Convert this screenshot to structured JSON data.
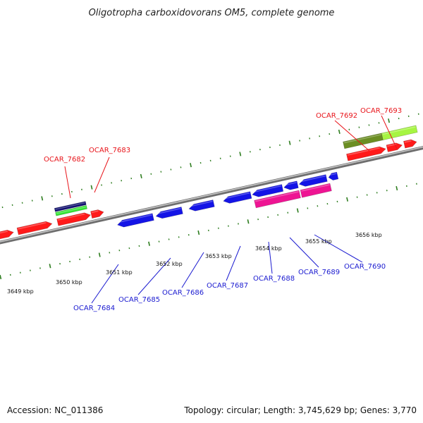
{
  "title": "Oligotropha carboxidovorans OM5, complete genome",
  "footer": {
    "accession": "Accession: NC_011386",
    "summary": "Topology: circular; Length: 3,745,629 bp; Genes: 3,770"
  },
  "colors": {
    "background": "#ffffff",
    "backbone": "#8c8c8c",
    "tick": "#2e7d1f",
    "label_forward": "#e8141a",
    "label_reverse": "#1a1ad0",
    "gene_red": "#ff1a1a",
    "gene_blue": "#1414e6",
    "gene_navy": "#101070",
    "gene_green": "#33e633",
    "gene_olive": "#6b8e23",
    "gene_lime": "#a6f542",
    "gene_magenta": "#ee1493"
  },
  "kbp_labels": [
    "3649 kbp",
    "3650 kbp",
    "3651 kbp",
    "3652 kbp",
    "3653 kbp",
    "3654 kbp",
    "3655 kbp",
    "3656 kbp"
  ],
  "gene_labels_forward": [
    "OCAR_7682",
    "OCAR_7683",
    "OCAR_7692",
    "OCAR_7693"
  ],
  "gene_labels_reverse": [
    "OCAR_7684",
    "OCAR_7685",
    "OCAR_7686",
    "OCAR_7687",
    "OCAR_7688",
    "OCAR_7689",
    "OCAR_7690"
  ]
}
